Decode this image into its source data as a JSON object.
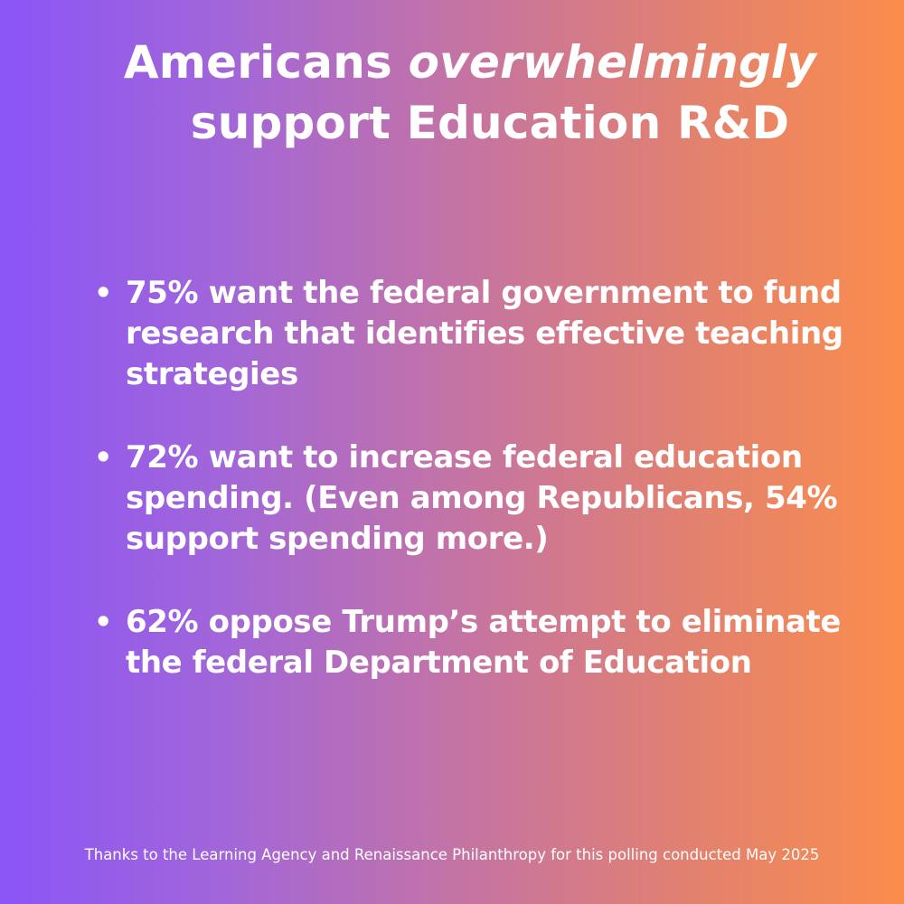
{
  "title": {
    "line1_prefix": "Americans ",
    "line1_emphasis": "overwhelmingly",
    "line2": "support Education R&D"
  },
  "bullets": [
    {
      "marker": "•",
      "text": "75% want the federal government to fund research that identifies effective teaching strategies"
    },
    {
      "marker": "•",
      "text": "72% want to increase federal education spending. (Even among Republicans, 54% support spending more.)"
    },
    {
      "marker": "•",
      "text": "62% oppose Trump’s attempt to eliminate the federal Department of Education"
    }
  ],
  "footer": "Thanks to the Learning Agency and Renaissance Philanthropy for this polling conducted May 2025",
  "colors": {
    "gradient_left": "#8b55f7",
    "gradient_right": "#fb8d4b",
    "text": "#ffffff"
  }
}
